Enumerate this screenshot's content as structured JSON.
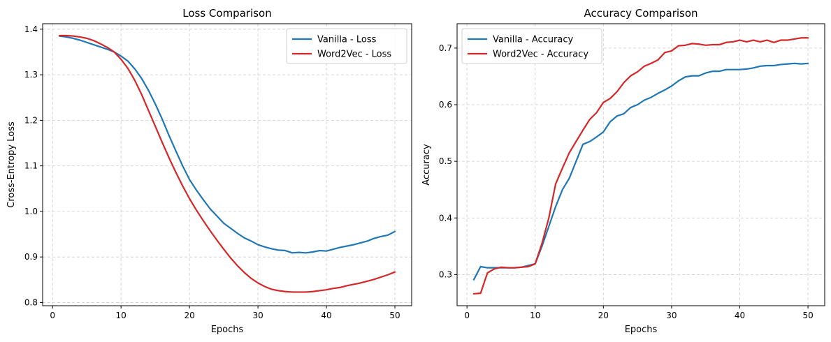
{
  "chart_data": [
    {
      "type": "line",
      "title": "Loss Comparison",
      "xlabel": "Epochs",
      "ylabel": "Cross-Entropy Loss",
      "xlim": [
        -1.45,
        52.45
      ],
      "ylim": [
        0.793,
        1.412
      ],
      "xticks": [
        0,
        10,
        20,
        30,
        40,
        50
      ],
      "yticks": [
        0.8,
        0.9,
        1.0,
        1.1,
        1.2,
        1.3,
        1.4
      ],
      "ytick_labels": [
        "0.8",
        "0.9",
        "1.0",
        "1.1",
        "1.2",
        "1.3",
        "1.4"
      ],
      "grid": true,
      "legend_position": "top-right",
      "x": [
        1,
        2,
        3,
        4,
        5,
        6,
        7,
        8,
        9,
        10,
        11,
        12,
        13,
        14,
        15,
        16,
        17,
        18,
        19,
        20,
        21,
        22,
        23,
        24,
        25,
        26,
        27,
        28,
        29,
        30,
        31,
        32,
        33,
        34,
        35,
        36,
        37,
        38,
        39,
        40,
        41,
        42,
        43,
        44,
        45,
        46,
        47,
        48,
        49,
        50
      ],
      "series": [
        {
          "name": "Vanilla - Loss",
          "color": "#1f77b4",
          "values": [
            1.385,
            1.383,
            1.38,
            1.376,
            1.371,
            1.366,
            1.361,
            1.356,
            1.35,
            1.341,
            1.33,
            1.313,
            1.292,
            1.266,
            1.236,
            1.203,
            1.167,
            1.133,
            1.1,
            1.07,
            1.047,
            1.026,
            1.006,
            0.99,
            0.974,
            0.963,
            0.952,
            0.942,
            0.935,
            0.927,
            0.922,
            0.918,
            0.915,
            0.914,
            0.909,
            0.91,
            0.909,
            0.911,
            0.914,
            0.913,
            0.917,
            0.921,
            0.924,
            0.927,
            0.931,
            0.935,
            0.941,
            0.945,
            0.948,
            0.956
          ]
        },
        {
          "name": "Word2Vec - Loss",
          "color": "#d62728",
          "values": [
            1.386,
            1.386,
            1.385,
            1.383,
            1.38,
            1.375,
            1.368,
            1.36,
            1.35,
            1.334,
            1.314,
            1.288,
            1.257,
            1.222,
            1.187,
            1.152,
            1.118,
            1.086,
            1.056,
            1.028,
            1.003,
            0.98,
            0.958,
            0.937,
            0.917,
            0.898,
            0.881,
            0.866,
            0.853,
            0.843,
            0.835,
            0.829,
            0.826,
            0.824,
            0.823,
            0.823,
            0.823,
            0.824,
            0.826,
            0.828,
            0.831,
            0.833,
            0.837,
            0.84,
            0.843,
            0.847,
            0.851,
            0.856,
            0.861,
            0.867
          ]
        }
      ]
    },
    {
      "type": "line",
      "title": "Accuracy Comparison",
      "xlabel": "Epochs",
      "ylabel": "Accuracy",
      "xlim": [
        -1.45,
        52.45
      ],
      "ylim": [
        0.245,
        0.743
      ],
      "xticks": [
        0,
        10,
        20,
        30,
        40,
        50
      ],
      "yticks": [
        0.3,
        0.4,
        0.5,
        0.6,
        0.7
      ],
      "ytick_labels": [
        "0.3",
        "0.4",
        "0.5",
        "0.6",
        "0.7"
      ],
      "grid": true,
      "legend_position": "top-left",
      "x": [
        1,
        2,
        3,
        4,
        5,
        6,
        7,
        8,
        9,
        10,
        11,
        12,
        13,
        14,
        15,
        16,
        17,
        18,
        19,
        20,
        21,
        22,
        23,
        24,
        25,
        26,
        27,
        28,
        29,
        30,
        31,
        32,
        33,
        34,
        35,
        36,
        37,
        38,
        39,
        40,
        41,
        42,
        43,
        44,
        45,
        46,
        47,
        48,
        49,
        50
      ],
      "series": [
        {
          "name": "Vanilla - Accuracy",
          "color": "#1f77b4",
          "values": [
            0.291,
            0.314,
            0.312,
            0.312,
            0.312,
            0.312,
            0.312,
            0.313,
            0.316,
            0.319,
            0.35,
            0.385,
            0.42,
            0.45,
            0.47,
            0.5,
            0.53,
            0.535,
            0.543,
            0.552,
            0.57,
            0.58,
            0.584,
            0.595,
            0.6,
            0.608,
            0.613,
            0.62,
            0.626,
            0.633,
            0.642,
            0.649,
            0.651,
            0.651,
            0.656,
            0.659,
            0.659,
            0.662,
            0.662,
            0.662,
            0.663,
            0.665,
            0.668,
            0.669,
            0.669,
            0.671,
            0.672,
            0.673,
            0.672,
            0.673
          ]
        },
        {
          "name": "Word2Vec - Accuracy",
          "color": "#d62728",
          "values": [
            0.266,
            0.267,
            0.303,
            0.31,
            0.313,
            0.312,
            0.312,
            0.313,
            0.314,
            0.319,
            0.355,
            0.4,
            0.46,
            0.488,
            0.515,
            0.535,
            0.555,
            0.574,
            0.586,
            0.604,
            0.611,
            0.623,
            0.639,
            0.651,
            0.658,
            0.668,
            0.673,
            0.679,
            0.692,
            0.695,
            0.704,
            0.705,
            0.708,
            0.707,
            0.705,
            0.706,
            0.706,
            0.71,
            0.711,
            0.714,
            0.711,
            0.714,
            0.711,
            0.714,
            0.71,
            0.714,
            0.714,
            0.716,
            0.718,
            0.718
          ]
        }
      ]
    }
  ]
}
